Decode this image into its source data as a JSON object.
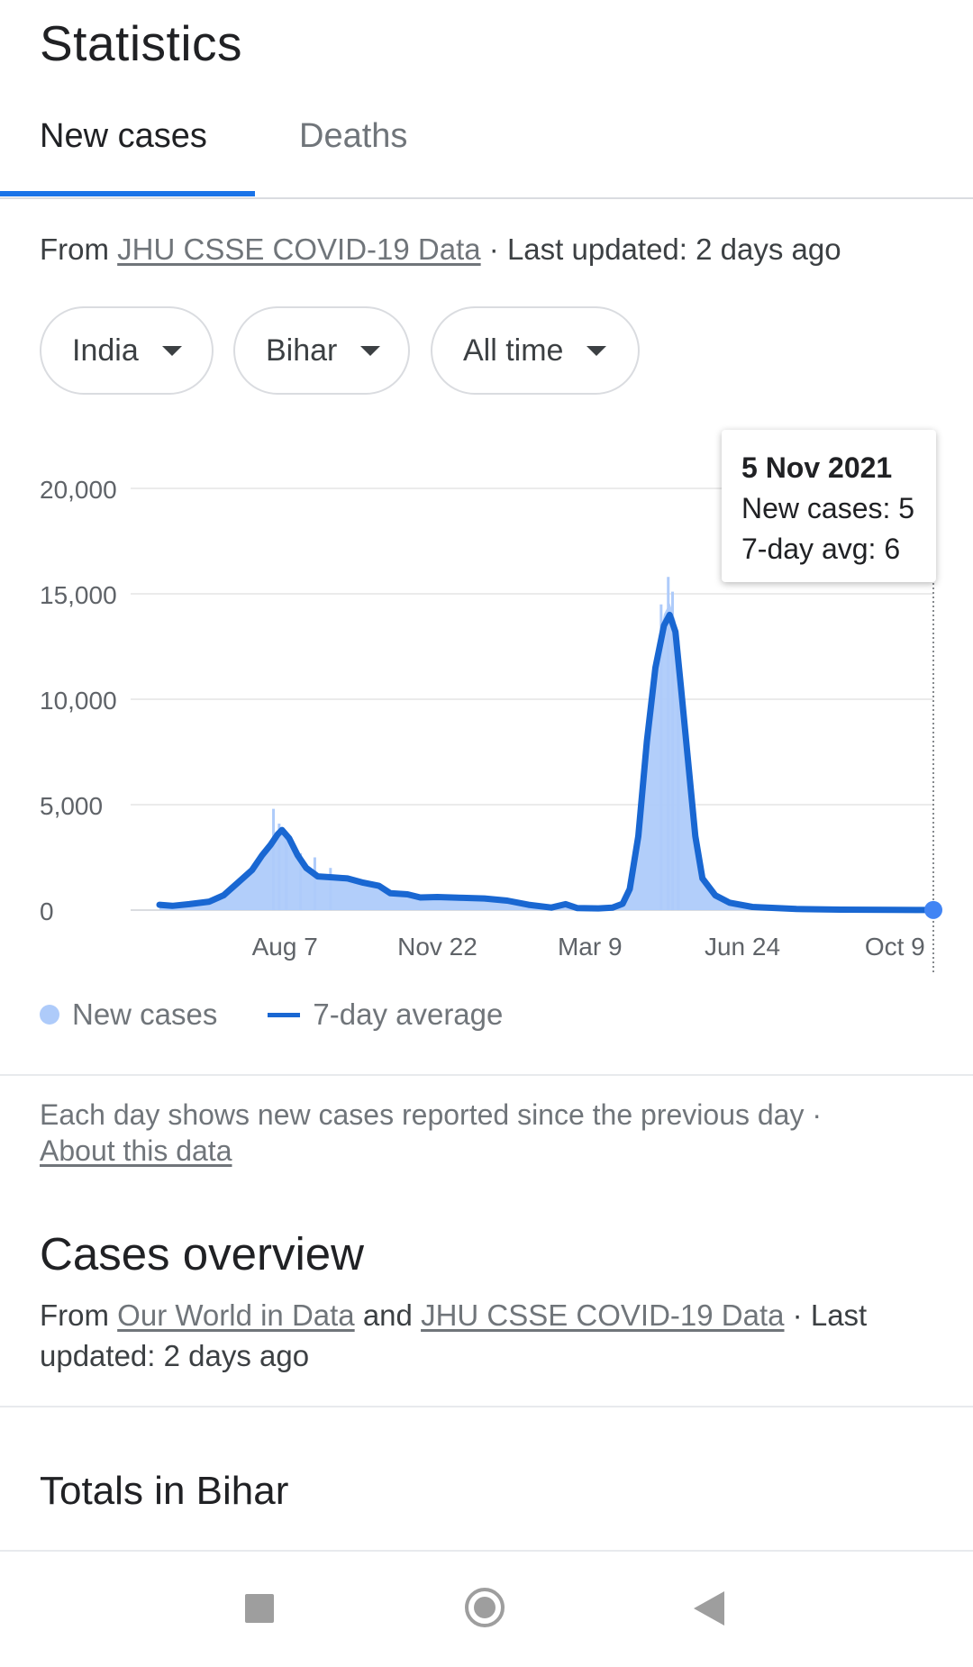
{
  "header": {
    "title": "Statistics"
  },
  "tabs": [
    {
      "label": "New cases",
      "active": true
    },
    {
      "label": "Deaths",
      "active": false
    }
  ],
  "source": {
    "prefix": "From ",
    "link": "JHU CSSE COVID-19 Data",
    "suffix": " · Last updated: 2 days ago"
  },
  "filters": {
    "country": "India",
    "state": "Bihar",
    "range": "All time"
  },
  "tooltip": {
    "date": "5 Nov 2021",
    "new_cases": "New cases: 5",
    "avg": "7-day avg: 6"
  },
  "legend": {
    "new_cases": "New cases",
    "avg": "7-day average"
  },
  "note": {
    "text": "Each day shows new cases reported since the previous day · ",
    "link": "About this data"
  },
  "overview": {
    "title": "Cases overview",
    "prefix": "From ",
    "link1": "Our World in Data",
    "mid": " and ",
    "link2": "JHU CSSE COVID-19 Data",
    "suffix": " · Last updated: 2 days ago"
  },
  "totals": {
    "title": "Totals in Bihar"
  },
  "colors": {
    "accent": "#1a73e8",
    "bars": "#aecbfa",
    "line": "#1967d2",
    "marker": "#4285f4"
  },
  "icons": {
    "recents": "square-icon",
    "home": "circle-icon",
    "back": "triangle-back-icon"
  },
  "chart_data": {
    "type": "area",
    "ylim": [
      0,
      20000
    ],
    "yticks": [
      20000,
      15000,
      10000,
      5000,
      0
    ],
    "ytick_labels": [
      "20,000",
      "15,000",
      "10,000",
      "5,000",
      "0"
    ],
    "xlim": [
      "2020-05-11",
      "2021-11-05"
    ],
    "xticks": [
      "2020-08-07",
      "2020-11-22",
      "2021-03-09",
      "2021-06-24",
      "2021-10-09"
    ],
    "xtick_labels": [
      "Aug 7",
      "Nov 22",
      "Mar 9",
      "Jun 24",
      "Oct 9"
    ],
    "grid": true,
    "series": [
      {
        "name": "7-day average",
        "points": [
          [
            "2020-05-11",
            250
          ],
          [
            "2020-05-20",
            200
          ],
          [
            "2020-06-01",
            280
          ],
          [
            "2020-06-15",
            400
          ],
          [
            "2020-06-25",
            700
          ],
          [
            "2020-07-05",
            1300
          ],
          [
            "2020-07-15",
            1900
          ],
          [
            "2020-07-22",
            2600
          ],
          [
            "2020-07-28",
            3100
          ],
          [
            "2020-08-02",
            3600
          ],
          [
            "2020-08-05",
            3800
          ],
          [
            "2020-08-10",
            3400
          ],
          [
            "2020-08-16",
            2600
          ],
          [
            "2020-08-22",
            2000
          ],
          [
            "2020-08-30",
            1600
          ],
          [
            "2020-09-10",
            1550
          ],
          [
            "2020-09-20",
            1500
          ],
          [
            "2020-10-01",
            1300
          ],
          [
            "2020-10-12",
            1150
          ],
          [
            "2020-10-20",
            800
          ],
          [
            "2020-11-01",
            750
          ],
          [
            "2020-11-10",
            600
          ],
          [
            "2020-11-22",
            620
          ],
          [
            "2020-12-10",
            580
          ],
          [
            "2020-12-25",
            550
          ],
          [
            "2021-01-10",
            450
          ],
          [
            "2021-01-25",
            250
          ],
          [
            "2021-02-10",
            120
          ],
          [
            "2021-02-20",
            280
          ],
          [
            "2021-02-28",
            100
          ],
          [
            "2021-03-15",
            80
          ],
          [
            "2021-03-25",
            120
          ],
          [
            "2021-04-01",
            300
          ],
          [
            "2021-04-06",
            1000
          ],
          [
            "2021-04-12",
            3500
          ],
          [
            "2021-04-18",
            8000
          ],
          [
            "2021-04-24",
            11500
          ],
          [
            "2021-04-30",
            13500
          ],
          [
            "2021-05-04",
            14000
          ],
          [
            "2021-05-08",
            13200
          ],
          [
            "2021-05-12",
            10500
          ],
          [
            "2021-05-17",
            7000
          ],
          [
            "2021-05-22",
            3500
          ],
          [
            "2021-05-27",
            1500
          ],
          [
            "2021-06-05",
            700
          ],
          [
            "2021-06-15",
            350
          ],
          [
            "2021-07-01",
            150
          ],
          [
            "2021-08-01",
            50
          ],
          [
            "2021-09-01",
            20
          ],
          [
            "2021-10-09",
            10
          ],
          [
            "2021-11-05",
            6
          ]
        ]
      },
      {
        "name": "New cases",
        "spikes": [
          [
            "2020-07-30",
            4800
          ],
          [
            "2020-08-03",
            4100
          ],
          [
            "2020-08-08",
            3700
          ],
          [
            "2020-08-18",
            2700
          ],
          [
            "2020-08-28",
            2500
          ],
          [
            "2020-09-08",
            2000
          ],
          [
            "2021-04-28",
            14500
          ],
          [
            "2021-05-03",
            15800
          ],
          [
            "2021-05-06",
            15100
          ],
          [
            "2021-05-10",
            12800
          ]
        ]
      }
    ]
  }
}
